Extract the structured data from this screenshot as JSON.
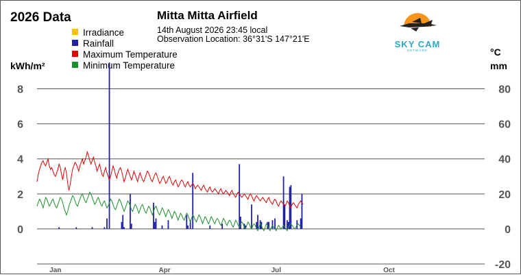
{
  "header": {
    "page_title": "2026 Data",
    "station": "Mitta Mitta Airfield",
    "datetime": "14th August 2026  23:45 local",
    "location": "Observation Location: 36°31'S 147°21'E"
  },
  "logo": {
    "text": "SKY CAM",
    "subtext": "NETWORK",
    "colors": {
      "sun": "#f7941d",
      "text": "#2aa7c9",
      "plane": "#222222"
    }
  },
  "chart_data": {
    "type": "bar",
    "legend": [
      {
        "name": "Irradiance",
        "color": "#f5c400"
      },
      {
        "name": "Rainfall",
        "color": "#1f1fa8"
      },
      {
        "name": "Maximum Temperature",
        "color": "#e00000"
      },
      {
        "name": "Minimum Temperature",
        "color": "#1a8f2a"
      }
    ],
    "legend_placement": "top-left",
    "left_axis": {
      "label": "kWh/m²",
      "ylim": [
        -2,
        9
      ],
      "ticks": [
        0,
        2,
        4,
        6,
        8
      ]
    },
    "right_axis_top_label": "°C",
    "right_axis": {
      "label": "mm",
      "ylim": [
        -20,
        90
      ],
      "ticks": [
        -20,
        0,
        20,
        40,
        60,
        80
      ]
    },
    "x_axis": {
      "days": [
        1,
        366
      ],
      "month_labels": [
        {
          "label": "Jan",
          "day": 16
        },
        {
          "label": "Apr",
          "day": 105
        },
        {
          "label": "Jul",
          "day": 196
        },
        {
          "label": "Oct",
          "day": 288
        }
      ]
    },
    "grid": true,
    "rainfall": {
      "name": "Rainfall",
      "color": "#1f1fa8",
      "days": [
        19,
        33,
        46,
        56,
        58,
        60,
        70,
        71,
        72,
        77,
        78,
        96,
        97,
        98,
        103,
        108,
        123,
        124,
        126,
        128,
        142,
        152,
        166,
        167,
        170,
        171,
        176,
        180,
        181,
        183,
        184,
        189,
        190,
        193,
        195,
        202,
        203,
        205,
        206,
        207,
        208,
        213,
        216,
        217
      ],
      "values": [
        1,
        1,
        1,
        1,
        6,
        95,
        4,
        8,
        1,
        20,
        3,
        15,
        4,
        6,
        2,
        5,
        8,
        2,
        5,
        32,
        2,
        3,
        37,
        7,
        3,
        2,
        14,
        4,
        8,
        5,
        4,
        4,
        4,
        5,
        6,
        30,
        14,
        5,
        4,
        24,
        25,
        5,
        6,
        20
      ]
    },
    "max_temperature": {
      "name": "Maximum Temperature",
      "color": "#e00000",
      "values": [
        27,
        31,
        34,
        36,
        38,
        39,
        37,
        36,
        38,
        40,
        36,
        34,
        35,
        33,
        31,
        30,
        32,
        34,
        37,
        35,
        31,
        28,
        33,
        35,
        32,
        26,
        22,
        25,
        30,
        34,
        36,
        38,
        37,
        35,
        33,
        36,
        38,
        40,
        37,
        39,
        41,
        44,
        42,
        39,
        37,
        39,
        41,
        38,
        36,
        33,
        35,
        37,
        34,
        31,
        30,
        33,
        35,
        32,
        30,
        28,
        30,
        33,
        36,
        34,
        31,
        29,
        32,
        34,
        35,
        33,
        30,
        27,
        29,
        32,
        34,
        32,
        30,
        28,
        30,
        33,
        31,
        29,
        27,
        30,
        32,
        30,
        28,
        27,
        29,
        31,
        33,
        32,
        30,
        28,
        27,
        29,
        31,
        32,
        30,
        28,
        26,
        27,
        29,
        30,
        28,
        26,
        27,
        29,
        30,
        28,
        26,
        25,
        27,
        28,
        26,
        24,
        25,
        27,
        28,
        27,
        25,
        24,
        26,
        27,
        25,
        24,
        25,
        26,
        25,
        23,
        24,
        25,
        24,
        23,
        22,
        24,
        25,
        23,
        22,
        21,
        23,
        24,
        22,
        21,
        22,
        23,
        22,
        21,
        20,
        22,
        23,
        21,
        20,
        21,
        22,
        21,
        20,
        19,
        21,
        22,
        20,
        19,
        18,
        20,
        21,
        20,
        19,
        18,
        19,
        20,
        19,
        18,
        17,
        19,
        20,
        19,
        17,
        16,
        18,
        19,
        18,
        17,
        16,
        17,
        18,
        17,
        16,
        15,
        17,
        18,
        16,
        15,
        14,
        16,
        17,
        16,
        14,
        13,
        15,
        16,
        15,
        14,
        13,
        14,
        16,
        15,
        13,
        12,
        14,
        15,
        14,
        13,
        12,
        14,
        15,
        16,
        15,
        14
      ]
    },
    "min_temperature": {
      "name": "Minimum Temperature",
      "color": "#1a8f2a",
      "values": [
        13,
        15,
        17,
        16,
        14,
        12,
        15,
        18,
        17,
        15,
        13,
        14,
        16,
        17,
        15,
        13,
        12,
        14,
        16,
        18,
        17,
        15,
        12,
        10,
        8,
        10,
        13,
        15,
        17,
        19,
        18,
        16,
        14,
        13,
        15,
        17,
        19,
        20,
        18,
        16,
        15,
        17,
        19,
        21,
        20,
        18,
        16,
        14,
        15,
        17,
        18,
        16,
        14,
        13,
        15,
        16,
        14,
        12,
        13,
        15,
        17,
        16,
        14,
        12,
        11,
        13,
        15,
        17,
        16,
        14,
        12,
        10,
        12,
        14,
        16,
        15,
        13,
        11,
        10,
        12,
        14,
        13,
        11,
        9,
        11,
        13,
        14,
        12,
        10,
        9,
        11,
        13,
        12,
        10,
        8,
        10,
        12,
        13,
        11,
        9,
        8,
        10,
        12,
        11,
        9,
        7,
        9,
        11,
        10,
        8,
        6,
        8,
        10,
        9,
        7,
        5,
        7,
        9,
        8,
        6,
        5,
        7,
        9,
        8,
        6,
        4,
        6,
        8,
        7,
        5,
        4,
        6,
        8,
        7,
        5,
        3,
        5,
        7,
        6,
        4,
        3,
        5,
        7,
        6,
        4,
        3,
        5,
        6,
        5,
        3,
        2,
        4,
        6,
        5,
        3,
        2,
        4,
        5,
        4,
        2,
        1,
        3,
        5,
        4,
        2,
        1,
        3,
        4,
        3,
        1,
        0,
        2,
        4,
        3,
        1,
        0,
        2,
        3,
        2,
        0,
        -1,
        1,
        3,
        2,
        0,
        -1,
        1,
        3,
        2,
        0,
        -1,
        1,
        2,
        1,
        0,
        -1,
        1,
        2,
        1,
        0,
        1,
        2,
        1,
        0,
        -1,
        1,
        2,
        3,
        2,
        1,
        0,
        1,
        2,
        3,
        2,
        1
      ]
    }
  }
}
